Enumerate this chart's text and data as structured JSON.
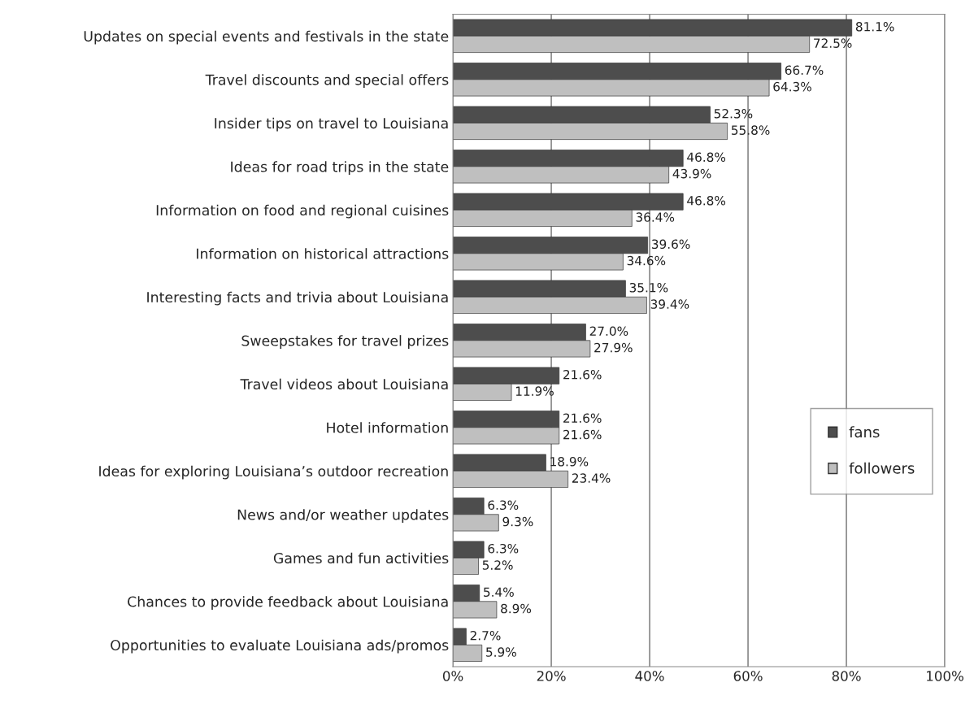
{
  "chart_data": {
    "type": "bar",
    "orientation": "horizontal",
    "categories": [
      "Updates on special events and festivals in the state",
      "Travel discounts and special offers",
      "Insider tips on travel to Louisiana",
      "Ideas for road trips in the state",
      "Information on food and regional cuisines",
      "Information on historical attractions",
      "Interesting facts and trivia about Louisiana",
      "Sweepstakes for travel prizes",
      "Travel videos about Louisiana",
      "Hotel information",
      "Ideas for exploring Louisiana’s outdoor recreation",
      "News and/or weather updates",
      "Games and fun activities",
      "Chances to provide feedback about Louisiana",
      "Opportunities to evaluate Louisiana ads/promos"
    ],
    "series": [
      {
        "name": "fans",
        "color": "#4d4d4d",
        "values": [
          81.1,
          66.7,
          52.3,
          46.8,
          46.8,
          39.6,
          35.1,
          27.0,
          21.6,
          21.6,
          18.9,
          6.3,
          6.3,
          5.4,
          2.7
        ],
        "value_labels": [
          "81.1%",
          "66.7%",
          "52.3%",
          "46.8%",
          "46.8%",
          "39.6%",
          "35.1%",
          "27.0%",
          "21.6%",
          "21.6%",
          "18.9%",
          "6.3%",
          "6.3%",
          "5.4%",
          "2.7%"
        ]
      },
      {
        "name": "followers",
        "color": "#bfbfbf",
        "values": [
          72.5,
          64.3,
          55.8,
          43.9,
          36.4,
          34.6,
          39.4,
          27.9,
          11.9,
          21.6,
          23.4,
          9.3,
          5.2,
          8.9,
          5.9
        ],
        "value_labels": [
          "72.5%",
          "64.3%",
          "55.8%",
          "43.9%",
          "36.4%",
          "34.6%",
          "39.4%",
          "27.9%",
          "11.9%",
          "21.6%",
          "23.4%",
          "9.3%",
          "5.2%",
          "8.9%",
          "5.9%"
        ]
      }
    ],
    "xlim": [
      0,
      100
    ],
    "xticks": [
      {
        "value": 0,
        "label": "0%"
      },
      {
        "value": 20,
        "label": "20%"
      },
      {
        "value": 40,
        "label": "40%"
      },
      {
        "value": 60,
        "label": "60%"
      },
      {
        "value": 80,
        "label": "80%"
      },
      {
        "value": 100,
        "label": "100%"
      }
    ],
    "grid": "x",
    "legend": "right"
  }
}
